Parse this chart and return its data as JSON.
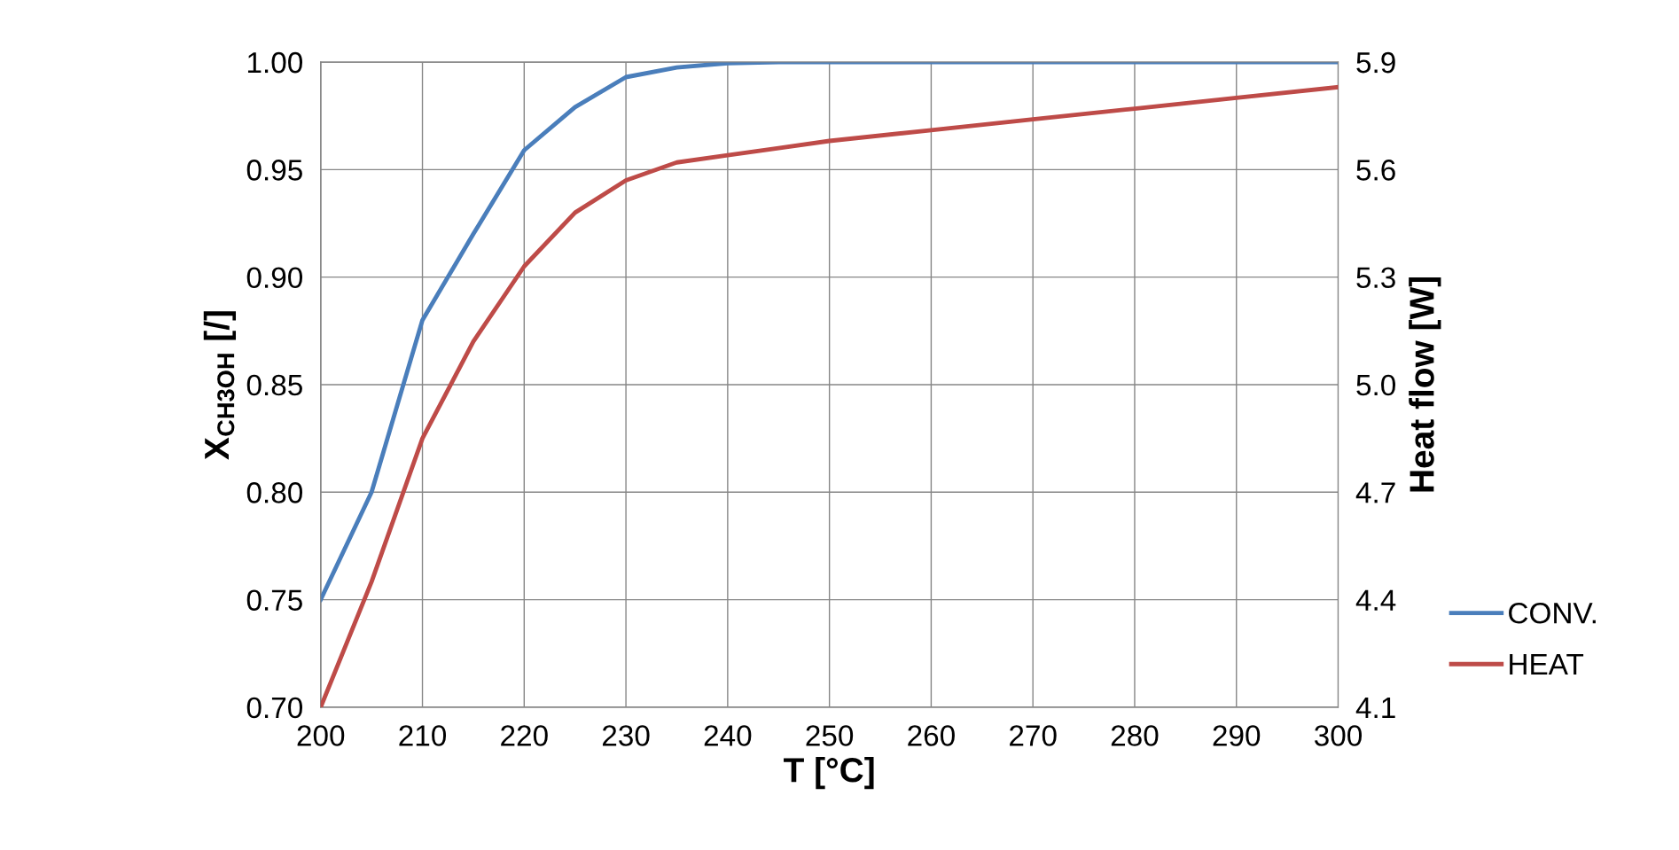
{
  "chart_data": {
    "type": "line",
    "xlabel": "T [°C]",
    "ylabel": "X$_{CH3OH}$ [/]",
    "y2label": "Heat flow [W]",
    "x": [
      200,
      205,
      210,
      215,
      220,
      225,
      230,
      235,
      240,
      245,
      250,
      260,
      270,
      280,
      290,
      300
    ],
    "series": [
      {
        "name": "CONV.",
        "color": "#4a7ebb",
        "values": [
          0.75,
          0.8,
          0.88,
          0.92,
          0.959,
          0.979,
          0.993,
          0.9975,
          0.9995,
          1.0,
          1.0,
          1.0,
          1.0,
          1.0,
          1.0,
          1.0
        ]
      },
      {
        "name": "HEAT",
        "color": "#be4b48",
        "axis": "y2",
        "values": [
          4.1,
          4.45,
          4.85,
          5.12,
          5.33,
          5.48,
          5.57,
          5.62,
          5.64,
          5.66,
          5.68,
          5.71,
          5.74,
          5.77,
          5.8,
          5.83
        ]
      }
    ],
    "xlim": [
      200,
      300
    ],
    "xticks": [
      200,
      210,
      220,
      230,
      240,
      250,
      260,
      270,
      280,
      290,
      300
    ],
    "ylim": [
      0.7,
      1.0
    ],
    "yticks": [
      {
        "value": 0.7,
        "label": "0.70"
      },
      {
        "value": 0.75,
        "label": "0.75"
      },
      {
        "value": 0.8,
        "label": "0.80"
      },
      {
        "value": 0.85,
        "label": "0.85"
      },
      {
        "value": 0.9,
        "label": "0.90"
      },
      {
        "value": 0.95,
        "label": "0.95"
      },
      {
        "value": 1.0,
        "label": "1.00"
      }
    ],
    "y2lim": [
      4.1,
      5.9
    ],
    "y2ticks": [
      4.1,
      4.4,
      4.7,
      {
        "value": 5.0,
        "label": "5.0"
      },
      5.3,
      5.6,
      5.9
    ],
    "grid": true,
    "legend": "right",
    "marker": "none",
    "line_style": "solid"
  }
}
